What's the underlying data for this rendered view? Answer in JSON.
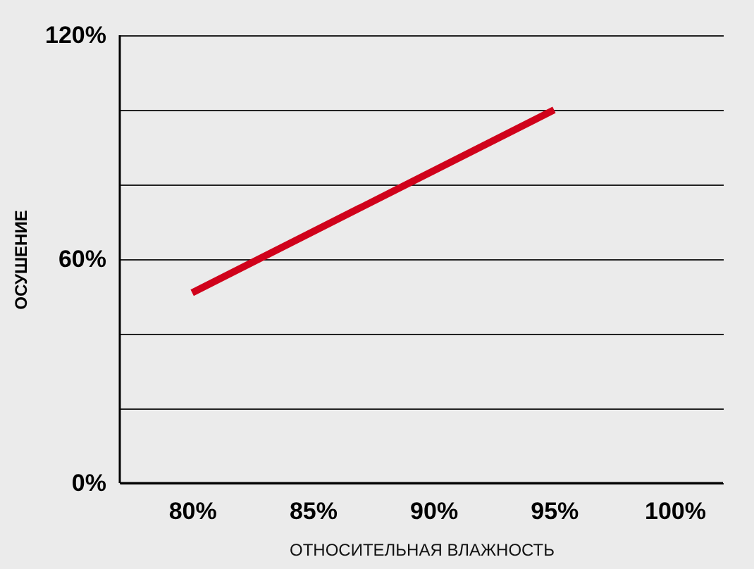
{
  "chart_data": {
    "type": "line",
    "xlabel": "ОТНОСИТЕЛЬНАЯ ВЛАЖНОСТЬ",
    "ylabel": "ОСУШЕНИЕ",
    "x": [
      80,
      95
    ],
    "series": [
      {
        "color": "#d0021b",
        "values": [
          51,
          100
        ]
      }
    ],
    "xlim": [
      77,
      102
    ],
    "xticks": [
      {
        "value": 80,
        "label": "80%"
      },
      {
        "value": 85,
        "label": "85%"
      },
      {
        "value": 90,
        "label": "90%"
      },
      {
        "value": 95,
        "label": "95%"
      },
      {
        "value": 100,
        "label": "100%"
      }
    ],
    "ylim": [
      0,
      120
    ],
    "yticks": [
      {
        "value": 0,
        "label": "0%"
      },
      {
        "value": 20,
        "label": null
      },
      {
        "value": 40,
        "label": null
      },
      {
        "value": 60,
        "label": "60%"
      },
      {
        "value": 80,
        "label": null
      },
      {
        "value": 100,
        "label": null
      },
      {
        "value": 120,
        "label": "120%"
      }
    ],
    "grid": "y",
    "marker": "none",
    "line_style": "solid"
  }
}
